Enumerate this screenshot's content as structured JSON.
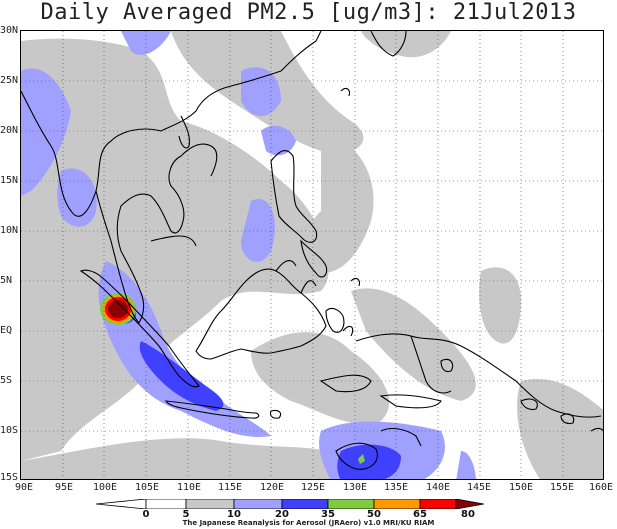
{
  "title": "Daily Averaged PM2.5 [ug/m3]: 21Jul2013",
  "y_axis": [
    "30N",
    "25N",
    "20N",
    "15N",
    "10N",
    "5N",
    "EQ",
    "5S",
    "10S",
    "15S"
  ],
  "x_axis": [
    "90E",
    "95E",
    "100E",
    "105E",
    "110E",
    "115E",
    "120E",
    "125E",
    "130E",
    "135E",
    "140E",
    "145E",
    "150E",
    "155E",
    "160E"
  ],
  "colorbar": {
    "labels": [
      "0",
      "5",
      "10",
      "20",
      "35",
      "50",
      "65",
      "80"
    ],
    "colors": [
      "#ffffff",
      "#ffffff",
      "#c8c8c8",
      "#a0a0ff",
      "#4040ff",
      "#80cc40",
      "#ff9900",
      "#ff0000",
      "#8b0000"
    ]
  },
  "credit": "The Japanese Reanalysis for Aerosol (JRAero) v1.0 MRI/KU RIAM",
  "colors": {
    "gray": "#c8c8c8",
    "light_blue": "#a0a0ff",
    "blue": "#4040ff",
    "green": "#80cc40",
    "orange": "#ff9900",
    "red": "#ff0000",
    "dark_red": "#8b0000"
  }
}
